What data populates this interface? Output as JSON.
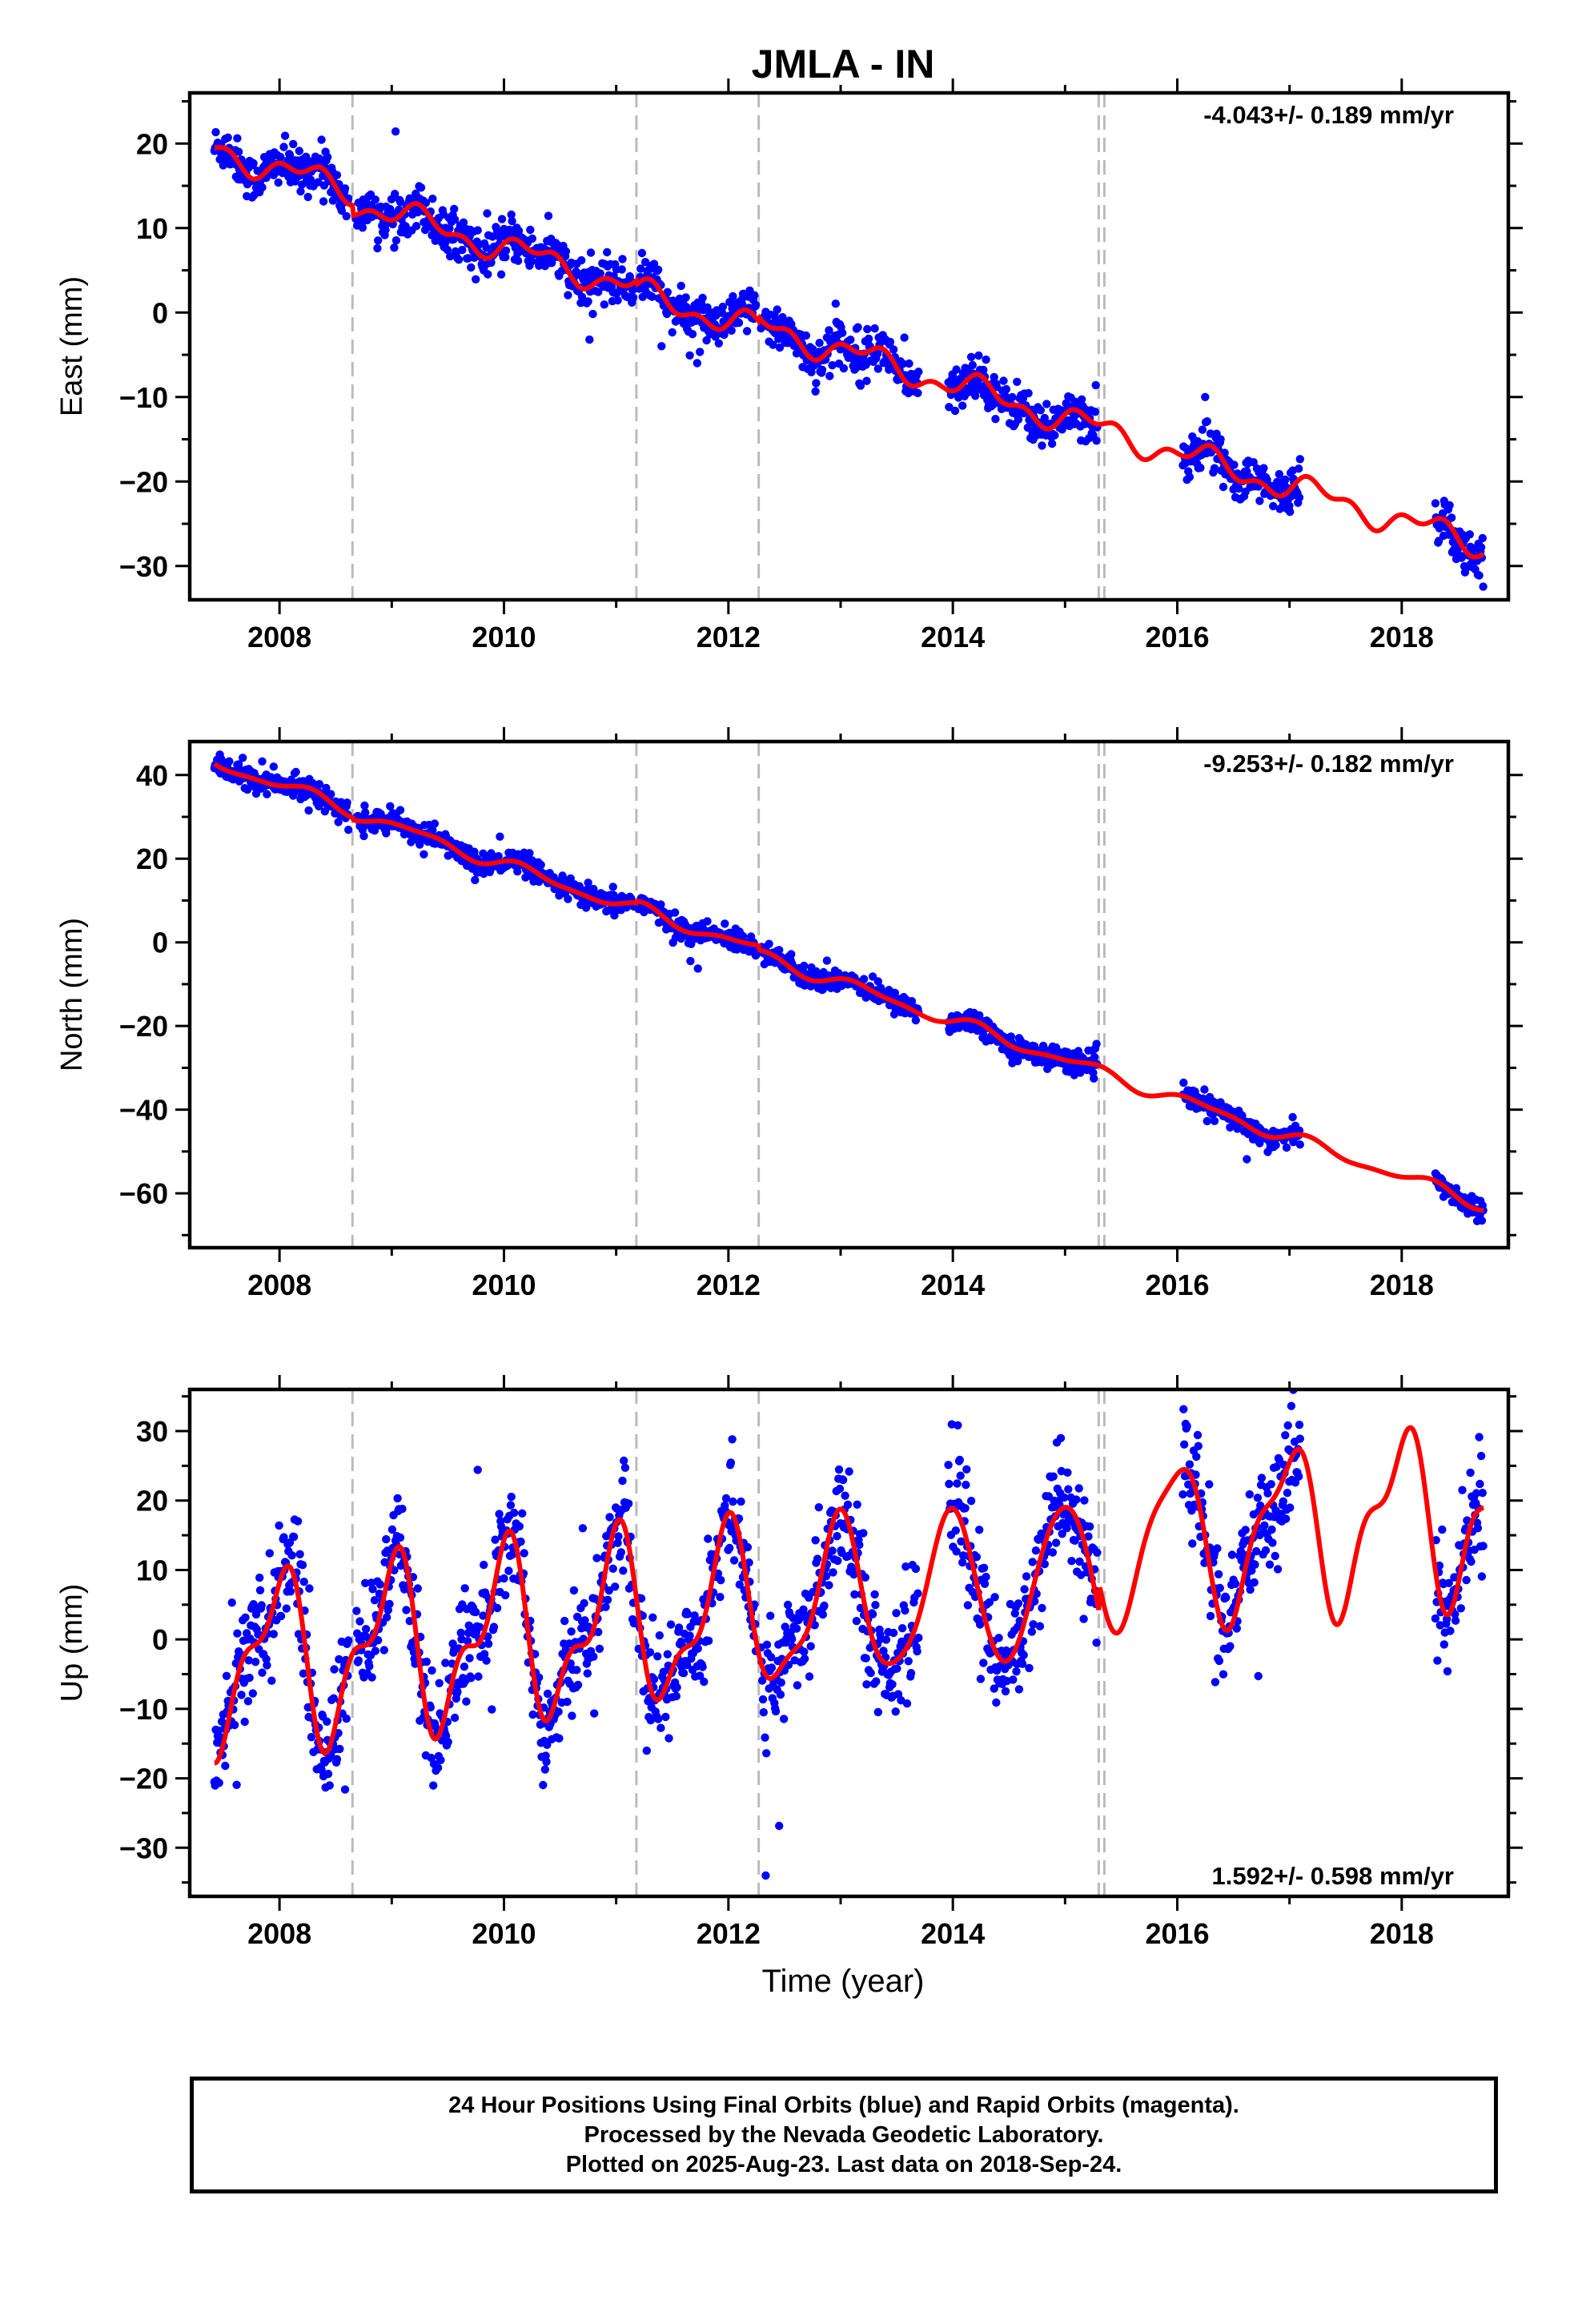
{
  "chart_data": {
    "type": "scatter",
    "title": "JMLA - IN",
    "xlabel": "Time (year)",
    "xlim": [
      2007.2,
      2018.95
    ],
    "x_ticks": [
      2008,
      2010,
      2012,
      2014,
      2016,
      2018
    ],
    "steps": [
      2008.65,
      2011.18,
      2012.27,
      2015.3,
      2015.35
    ],
    "colors": {
      "data": "#0000ff",
      "model": "#ff0000",
      "steps": "#bbbbbb",
      "axes": "#000000"
    },
    "data_segments": [
      [
        2007.42,
        2008.62
      ],
      [
        2008.68,
        2011.16
      ],
      [
        2011.2,
        2012.25
      ],
      [
        2012.29,
        2013.7
      ],
      [
        2013.96,
        2015.29
      ],
      [
        2016.05,
        2017.1
      ],
      [
        2018.3,
        2018.73
      ]
    ],
    "panels": [
      {
        "name": "East",
        "ylabel": "East (mm)",
        "rate": "-4.043+/- 0.189 mm/yr",
        "rate_position": "top-right",
        "ylim": [
          -34,
          26
        ],
        "y_ticks": [
          20,
          10,
          0,
          -10,
          -20,
          -30
        ],
        "model": {
          "intercept": 19.3,
          "t0": 2007.42,
          "slope": -4.043,
          "annual_amp": 1.3,
          "annual_phase": 0.0,
          "scatter": 1.3,
          "offsets": [
            [
              2008.65,
              -1.2
            ],
            [
              2011.18,
              -0.5
            ],
            [
              2012.27,
              0.5
            ]
          ],
          "wobble_amp": 0.8,
          "wobble_freq": 2.4
        }
      },
      {
        "name": "North",
        "ylabel": "North (mm)",
        "rate": "-9.253+/- 0.182 mm/yr",
        "rate_position": "top-right",
        "ylim": [
          -73,
          48
        ],
        "y_ticks": [
          40,
          20,
          0,
          -20,
          -40,
          -60
        ],
        "model": {
          "intercept": 43,
          "t0": 2007.42,
          "slope": -9.253,
          "annual_amp": 1.3,
          "annual_phase": 0.3,
          "scatter": 1.3,
          "offsets": [
            [
              2008.65,
              -0.5
            ],
            [
              2011.18,
              0.5
            ],
            [
              2012.27,
              -1.0
            ]
          ],
          "wobble_amp": 0.6,
          "wobble_freq": 1.7
        }
      },
      {
        "name": "Up",
        "ylabel": "Up (mm)",
        "rate": "1.592+/- 0.598 mm/yr",
        "rate_position": "bottom-right",
        "ylim": [
          -37,
          36
        ],
        "y_ticks": [
          30,
          20,
          10,
          0,
          -10,
          -20,
          -30
        ],
        "model": {
          "intercept": -3.5,
          "t0": 2007.42,
          "slope": 1.592,
          "annual_amp": 11,
          "annual_phase": 1.7,
          "scatter": 4.0,
          "offsets": [
            [
              2015.3,
              4.0
            ]
          ],
          "wobble_amp": 2.5,
          "wobble_freq": 2.1,
          "semi_amp": 3,
          "semi_phase": 0.4
        }
      }
    ]
  },
  "footer": {
    "line1": "24 Hour Positions Using Final Orbits (blue) and Rapid Orbits (magenta).",
    "line2": "Processed by the Nevada Geodetic Laboratory.",
    "line3": "Plotted on 2025-Aug-23. Last data on 2018-Sep-24."
  }
}
